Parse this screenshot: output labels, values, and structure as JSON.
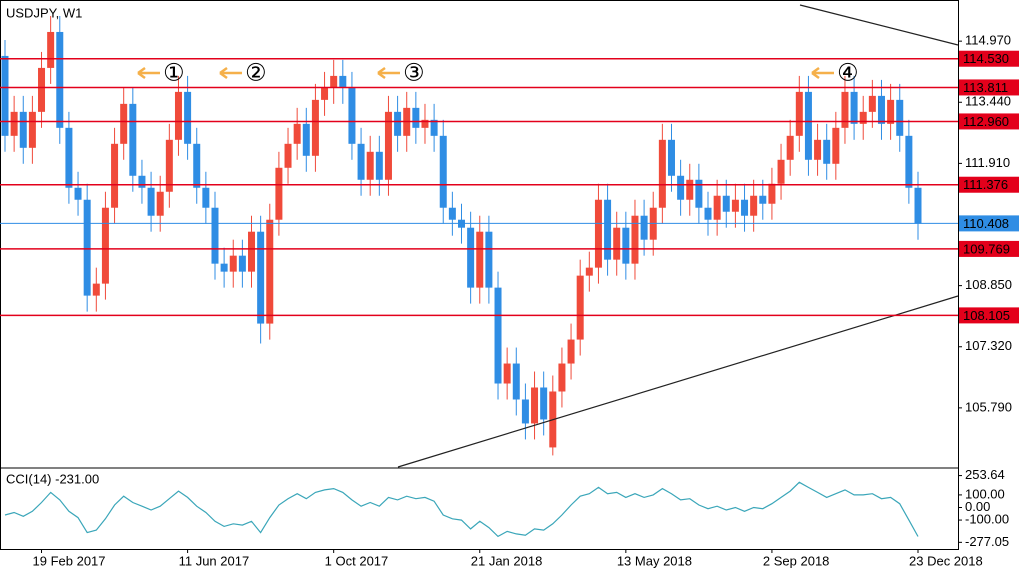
{
  "chart_data": [
    {
      "type": "candlestick",
      "title": "USDJPY, W1",
      "categories": [
        null,
        null,
        null,
        null,
        "19 Feb 2017",
        null,
        null,
        null,
        null,
        null,
        null,
        null,
        null,
        null,
        null,
        null,
        null,
        null,
        null,
        null,
        "11 Jun 2017",
        null,
        null,
        null,
        null,
        null,
        null,
        null,
        null,
        null,
        null,
        null,
        null,
        null,
        null,
        null,
        "1 Oct 2017",
        null,
        null,
        null,
        null,
        null,
        null,
        null,
        null,
        null,
        null,
        null,
        null,
        null,
        null,
        null,
        "21 Jan 2018",
        null,
        null,
        null,
        null,
        null,
        null,
        null,
        null,
        null,
        null,
        null,
        null,
        null,
        null,
        null,
        "13 May 2018",
        null,
        null,
        null,
        null,
        null,
        null,
        null,
        null,
        null,
        null,
        null,
        null,
        null,
        null,
        null,
        "2 Sep 2018",
        null,
        null,
        null,
        null,
        null,
        null,
        null,
        null,
        null,
        null,
        null,
        null,
        null,
        null,
        null,
        "23 Dec 2018"
      ],
      "open": [
        114.6,
        112.6,
        113.2,
        112.3,
        113.2,
        114.3,
        115.2,
        112.8,
        111.3,
        111.0,
        108.6,
        108.9,
        110.8,
        112.4,
        113.4,
        111.6,
        111.3,
        110.6,
        111.2,
        112.5,
        113.7,
        112.4,
        111.3,
        110.8,
        109.4,
        109.2,
        109.6,
        109.2,
        110.2,
        107.9,
        110.5,
        111.8,
        112.4,
        112.9,
        112.1,
        113.5,
        113.8,
        114.1,
        113.8,
        112.4,
        111.5,
        112.2,
        111.5,
        113.2,
        112.6,
        113.3,
        112.8,
        113.0,
        112.6,
        110.8,
        110.5,
        110.3,
        108.8,
        110.2,
        108.8,
        106.4,
        106.9,
        106.0,
        105.4,
        106.3,
        104.8,
        106.2,
        106.9,
        107.5,
        109.1,
        109.3,
        111.0,
        109.5,
        110.3,
        109.4,
        110.6,
        110.0,
        110.8,
        112.5,
        111.6,
        111.0,
        111.5,
        110.8,
        110.5,
        111.1,
        110.7,
        111.0,
        110.6,
        111.1,
        110.9,
        111.4,
        112.0,
        112.6,
        113.7,
        112.0,
        112.5,
        111.9,
        112.8,
        113.7,
        112.9,
        113.2,
        113.6,
        112.9,
        113.5,
        112.6,
        111.3
      ],
      "high": [
        115.0,
        113.6,
        113.6,
        113.6,
        114.7,
        115.6,
        115.6,
        113.2,
        111.7,
        111.4,
        109.3,
        111.2,
        112.8,
        113.8,
        113.8,
        112.0,
        111.7,
        111.6,
        112.9,
        114.1,
        114.1,
        112.8,
        111.7,
        111.2,
        109.8,
        110.0,
        110.0,
        110.6,
        110.6,
        110.9,
        112.2,
        112.8,
        113.3,
        113.3,
        113.9,
        114.2,
        114.5,
        114.5,
        114.2,
        112.8,
        112.6,
        112.6,
        113.6,
        113.6,
        113.7,
        113.7,
        113.4,
        113.4,
        113.0,
        111.2,
        110.9,
        110.7,
        110.6,
        110.6,
        109.2,
        107.3,
        107.3,
        106.4,
        106.7,
        106.7,
        106.6,
        107.3,
        107.9,
        109.5,
        109.7,
        111.4,
        111.4,
        110.7,
        110.7,
        111.0,
        111.0,
        111.2,
        112.9,
        112.9,
        112.0,
        111.9,
        111.9,
        111.2,
        111.5,
        111.5,
        111.4,
        111.4,
        111.5,
        111.5,
        111.8,
        112.4,
        113.0,
        114.1,
        114.1,
        112.9,
        112.9,
        113.2,
        114.1,
        114.1,
        113.6,
        114.0,
        114.0,
        113.9,
        113.9,
        113.0,
        111.7
      ],
      "low": [
        112.2,
        112.2,
        111.9,
        111.9,
        112.8,
        113.9,
        112.4,
        110.9,
        110.6,
        108.2,
        108.2,
        108.5,
        110.4,
        112.0,
        111.2,
        110.9,
        110.2,
        110.2,
        110.8,
        112.1,
        112.0,
        110.9,
        110.4,
        109.0,
        108.8,
        108.8,
        108.8,
        108.8,
        107.4,
        107.5,
        110.1,
        111.4,
        112.0,
        111.7,
        111.7,
        113.1,
        113.4,
        113.4,
        112.0,
        111.1,
        111.1,
        111.1,
        111.1,
        112.2,
        112.2,
        112.4,
        112.4,
        112.2,
        110.4,
        110.1,
        109.9,
        108.4,
        108.4,
        108.4,
        106.0,
        106.0,
        105.6,
        105.0,
        105.0,
        105.1,
        104.6,
        105.8,
        106.5,
        107.1,
        108.7,
        108.9,
        109.1,
        109.1,
        109.0,
        109.0,
        109.6,
        109.6,
        110.4,
        111.2,
        110.6,
        110.6,
        110.4,
        110.1,
        110.1,
        110.3,
        110.3,
        110.2,
        110.2,
        110.5,
        110.5,
        111.0,
        111.6,
        112.2,
        111.6,
        111.6,
        111.5,
        111.5,
        112.4,
        112.5,
        112.5,
        112.8,
        112.5,
        112.5,
        112.2,
        110.9,
        110.0
      ],
      "close": [
        112.6,
        113.2,
        112.3,
        113.2,
        114.3,
        115.2,
        112.8,
        111.3,
        111.0,
        108.6,
        108.9,
        110.8,
        112.4,
        113.4,
        111.6,
        111.3,
        110.6,
        111.2,
        112.5,
        113.7,
        112.4,
        111.3,
        110.8,
        109.4,
        109.2,
        109.6,
        109.2,
        110.2,
        107.9,
        110.5,
        111.8,
        112.4,
        112.9,
        112.1,
        113.5,
        113.8,
        114.1,
        113.8,
        112.4,
        111.5,
        112.2,
        111.5,
        113.2,
        112.6,
        113.3,
        112.8,
        113.0,
        112.6,
        110.8,
        110.5,
        110.3,
        108.8,
        110.2,
        108.8,
        106.4,
        106.9,
        106.0,
        105.4,
        106.3,
        105.5,
        106.2,
        106.9,
        107.5,
        109.1,
        109.3,
        111.0,
        109.5,
        110.3,
        109.4,
        110.6,
        110.0,
        110.8,
        112.5,
        111.6,
        111.0,
        111.5,
        110.8,
        110.5,
        111.1,
        110.7,
        111.0,
        110.6,
        111.1,
        110.9,
        111.4,
        112.0,
        112.6,
        113.7,
        112.0,
        112.5,
        111.9,
        112.8,
        113.7,
        112.9,
        113.2,
        113.6,
        112.9,
        113.5,
        112.6,
        111.3,
        110.4
      ],
      "up_color": "#f04a3a",
      "down_color": "#2f8de4",
      "ylim": [
        104.31,
        116.0
      ],
      "yticks": [
        {
          "value": 114.97,
          "label": "114.970"
        },
        {
          "value": 113.44,
          "label": "113.440"
        },
        {
          "value": 111.91,
          "label": "111.910"
        },
        {
          "value": 108.85,
          "label": "108.850"
        },
        {
          "value": 107.32,
          "label": "107.320"
        },
        {
          "value": 105.79,
          "label": "105.790"
        }
      ],
      "levels": {
        "values": [
          114.53,
          113.811,
          112.96,
          111.376,
          109.769,
          108.105
        ],
        "value_labels": [
          "114.530",
          "113.811",
          "112.960",
          "111.376",
          "109.769",
          "108.105"
        ],
        "color": "#e3001b"
      },
      "current_price": 110.408,
      "current_color": "#2f8de4",
      "annotations": [
        "①",
        "②",
        "③",
        "④"
      ],
      "annotation_color": "#f5b04a"
    },
    {
      "type": "line",
      "title": "CCI(14) -231.00",
      "series": [
        {
          "name": "CCI(14)",
          "color": "#3aa6b9",
          "values": [
            -60,
            -40,
            -70,
            -30,
            40,
            120,
            60,
            -30,
            -80,
            -200,
            -180,
            -90,
            20,
            90,
            40,
            10,
            -20,
            10,
            70,
            130,
            80,
            10,
            -40,
            -110,
            -150,
            -130,
            -140,
            -110,
            -200,
            -80,
            20,
            70,
            110,
            70,
            120,
            140,
            150,
            120,
            60,
            10,
            40,
            10,
            80,
            60,
            90,
            70,
            80,
            50,
            -60,
            -90,
            -100,
            -170,
            -110,
            -160,
            -230,
            -190,
            -210,
            -220,
            -170,
            -180,
            -130,
            -60,
            20,
            90,
            110,
            160,
            110,
            120,
            80,
            110,
            80,
            100,
            150,
            110,
            60,
            70,
            20,
            -10,
            10,
            -20,
            0,
            -30,
            0,
            -10,
            30,
            80,
            130,
            200,
            160,
            120,
            80,
            110,
            140,
            100,
            100,
            110,
            70,
            80,
            30,
            -100,
            -231
          ]
        }
      ],
      "ylim": [
        -330,
        306
      ],
      "yticks": [
        253.64,
        {
          "value": 100,
          "label": "100.00"
        },
        {
          "value": 0,
          "label": "0.00"
        },
        {
          "value": -100,
          "label": "-100.00"
        },
        -277.05
      ]
    }
  ]
}
